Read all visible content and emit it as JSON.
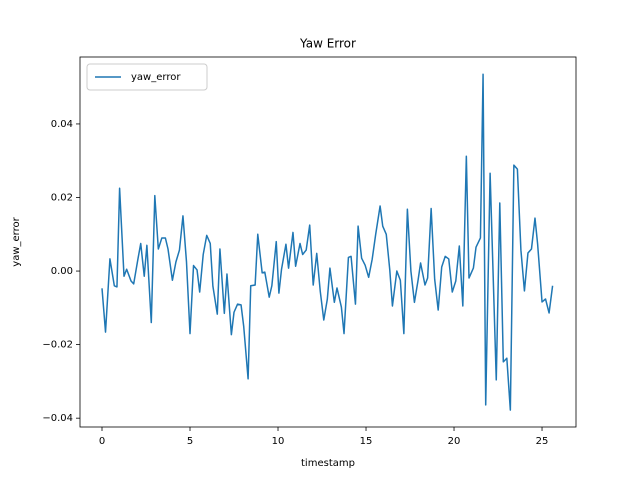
{
  "chart_data": {
    "type": "line",
    "title": "Yaw Error",
    "xlabel": "timestamp",
    "ylabel": "yaw_error",
    "x": [
      0,
      0.2,
      0.45,
      0.7,
      0.85,
      1.0,
      1.25,
      1.4,
      1.65,
      1.8,
      2.05,
      2.2,
      2.4,
      2.55,
      2.8,
      3.0,
      3.2,
      3.4,
      3.6,
      3.75,
      4.0,
      4.2,
      4.4,
      4.6,
      4.8,
      5.0,
      5.2,
      5.4,
      5.55,
      5.75,
      5.95,
      6.15,
      6.3,
      6.55,
      6.7,
      6.95,
      7.1,
      7.35,
      7.5,
      7.7,
      7.9,
      8.05,
      8.3,
      8.45,
      8.7,
      8.85,
      9.1,
      9.25,
      9.5,
      9.65,
      9.9,
      10.05,
      10.2,
      10.45,
      10.6,
      10.85,
      11.0,
      11.25,
      11.4,
      11.6,
      11.8,
      12.0,
      12.2,
      12.4,
      12.6,
      12.8,
      12.95,
      13.2,
      13.35,
      13.6,
      13.75,
      14.0,
      14.15,
      14.4,
      14.55,
      14.75,
      14.95,
      15.15,
      15.35,
      15.55,
      15.8,
      15.95,
      16.15,
      16.35,
      16.5,
      16.75,
      16.95,
      17.15,
      17.35,
      17.55,
      17.75,
      17.95,
      18.1,
      18.35,
      18.5,
      18.7,
      18.9,
      19.1,
      19.3,
      19.5,
      19.7,
      19.9,
      20.1,
      20.3,
      20.5,
      20.7,
      20.85,
      21.1,
      21.25,
      21.5,
      21.65,
      21.8,
      22.05,
      22.4,
      22.6,
      22.8,
      23.0,
      23.2,
      23.4,
      23.6,
      23.8,
      24.0,
      24.2,
      24.4,
      24.6,
      24.75,
      25.0,
      25.2,
      25.4,
      25.6
    ],
    "series": [
      {
        "name": "yaw_error",
        "color": "#1f77b4",
        "values": [
          -0.0047,
          -0.0166,
          0.0033,
          -0.004,
          -0.0043,
          0.0225,
          -0.0014,
          0.0005,
          -0.0027,
          -0.0035,
          0.0035,
          0.0075,
          -0.0014,
          0.007,
          -0.014,
          0.0205,
          0.006,
          0.009,
          0.009,
          0.006,
          -0.0025,
          0.0025,
          0.0057,
          0.015,
          0.0025,
          -0.017,
          0.0015,
          0.0003,
          -0.0057,
          0.0045,
          0.0097,
          0.0075,
          -0.0041,
          -0.0117,
          0.006,
          -0.0115,
          -0.0008,
          -0.0173,
          -0.0112,
          -0.009,
          -0.0092,
          -0.015,
          -0.0293,
          -0.004,
          -0.0038,
          0.01,
          -0.0005,
          -0.0003,
          -0.0071,
          -0.004,
          0.008,
          -0.006,
          0.0005,
          0.0073,
          0.0008,
          0.0105,
          0.0013,
          0.0075,
          0.0045,
          0.0057,
          0.0125,
          -0.0038,
          0.0048,
          -0.0055,
          -0.0133,
          -0.0077,
          0.0008,
          -0.0085,
          -0.0046,
          -0.0098,
          -0.017,
          0.0037,
          0.004,
          -0.009,
          0.0122,
          0.0035,
          0.0016,
          -0.0017,
          0.0032,
          0.01,
          0.0177,
          0.0122,
          0.01,
          0.0003,
          -0.0095,
          0.0,
          -0.0025,
          -0.017,
          0.0168,
          0.0,
          -0.0085,
          -0.0027,
          0.0022,
          -0.0038,
          -0.0019,
          0.017,
          -0.0022,
          -0.0106,
          0.0011,
          0.004,
          0.0033,
          -0.0057,
          -0.0027,
          0.0068,
          -0.0095,
          0.0312,
          -0.0019,
          0.0008,
          0.0065,
          0.009,
          0.0535,
          -0.0364,
          0.0266,
          -0.0296,
          0.0185,
          -0.0247,
          -0.0237,
          -0.0378,
          0.0288,
          0.0277,
          0.0057,
          -0.0054,
          0.0049,
          0.006,
          0.0144,
          0.0073,
          -0.0084,
          -0.0076,
          -0.0114,
          -0.004
        ]
      }
    ],
    "xlim": [
      -1.25,
      26.93
    ],
    "ylim": [
      -0.0424,
      0.0582
    ],
    "xticks": [
      0,
      5,
      10,
      15,
      20,
      25
    ],
    "yticks": [
      {
        "value": -0.04,
        "label": "−0.04"
      },
      {
        "value": -0.02,
        "label": "−0.02"
      },
      {
        "value": 0,
        "label": "0.00"
      },
      {
        "value": 0.02,
        "label": "0.02"
      },
      {
        "value": 0.04,
        "label": "0.04"
      }
    ],
    "legend": "upper left"
  }
}
